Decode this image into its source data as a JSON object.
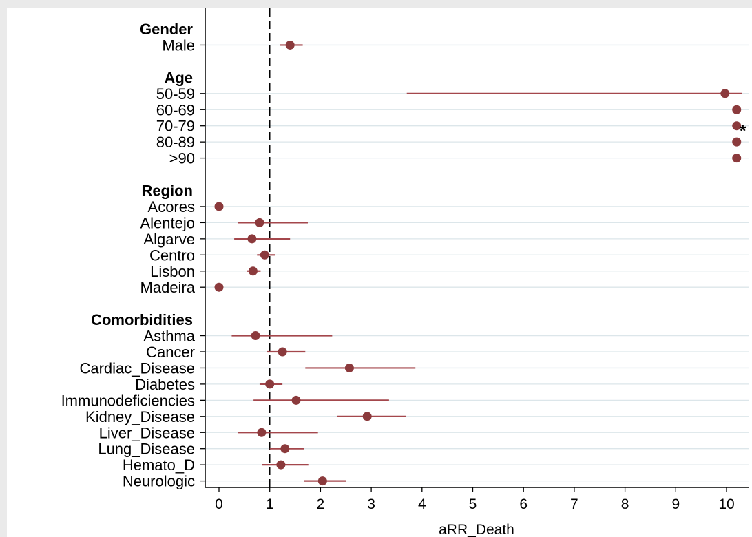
{
  "chart_data": {
    "type": "scatter",
    "subtype": "forest-plot",
    "title": "",
    "xlabel": "aRR_Death",
    "ylabel": "",
    "xlim": [
      0,
      10
    ],
    "x_ticks": [
      "0",
      "1",
      "2",
      "3",
      "4",
      "5",
      "6",
      "7",
      "8",
      "9",
      "10"
    ],
    "reference_line_x": 1,
    "reference_line_style": "dashed",
    "grid": "horizontal",
    "point_color": "#8b3a3c",
    "ci_color": "#a4474c",
    "axis_overflow_marker": "*",
    "groups": [
      {
        "name": "Gender",
        "items": [
          {
            "label": "Male",
            "est": 1.4,
            "low": 1.2,
            "high": 1.65
          }
        ]
      },
      {
        "name": "Age",
        "items": [
          {
            "label": "50-59",
            "est": 9.97,
            "low": 3.7,
            "high": 10.3
          },
          {
            "label": "60-69",
            "est": 10.2,
            "low": null,
            "high": null
          },
          {
            "label": "70-79",
            "est": 10.2,
            "low": null,
            "high": null
          },
          {
            "label": "80-89",
            "est": 10.2,
            "low": null,
            "high": null
          },
          {
            "label": ">90",
            "est": 10.2,
            "low": null,
            "high": null
          }
        ]
      },
      {
        "name": "Region",
        "items": [
          {
            "label": "Acores",
            "est": 0.0,
            "low": null,
            "high": null
          },
          {
            "label": "Alentejo",
            "est": 0.8,
            "low": 0.37,
            "high": 1.75
          },
          {
            "label": "Algarve",
            "est": 0.65,
            "low": 0.3,
            "high": 1.4
          },
          {
            "label": "Centro",
            "est": 0.9,
            "low": 0.75,
            "high": 1.1
          },
          {
            "label": "Lisbon",
            "est": 0.67,
            "low": 0.55,
            "high": 0.82
          },
          {
            "label": "Madeira",
            "est": 0.0,
            "low": null,
            "high": null
          }
        ]
      },
      {
        "name": "Comorbidities",
        "items": [
          {
            "label": "Asthma",
            "est": 0.72,
            "low": 0.25,
            "high": 2.23
          },
          {
            "label": "Cancer",
            "est": 1.25,
            "low": 0.95,
            "high": 1.7
          },
          {
            "label": "Cardiac_Disease",
            "est": 2.57,
            "low": 1.7,
            "high": 3.87
          },
          {
            "label": "Diabetes",
            "est": 1.0,
            "low": 0.8,
            "high": 1.25
          },
          {
            "label": "Immunodeficiencies",
            "est": 1.52,
            "low": 0.68,
            "high": 3.35
          },
          {
            "label": "Kidney_Disease",
            "est": 2.92,
            "low": 2.33,
            "high": 3.68
          },
          {
            "label": "Liver_Disease",
            "est": 0.84,
            "low": 0.37,
            "high": 1.95
          },
          {
            "label": "Lung_Disease",
            "est": 1.3,
            "low": 1.0,
            "high": 1.68
          },
          {
            "label": "Hemato_D",
            "est": 1.22,
            "low": 0.85,
            "high": 1.76
          },
          {
            "label": "Neurologic",
            "est": 2.04,
            "low": 1.67,
            "high": 2.5
          }
        ]
      }
    ]
  }
}
